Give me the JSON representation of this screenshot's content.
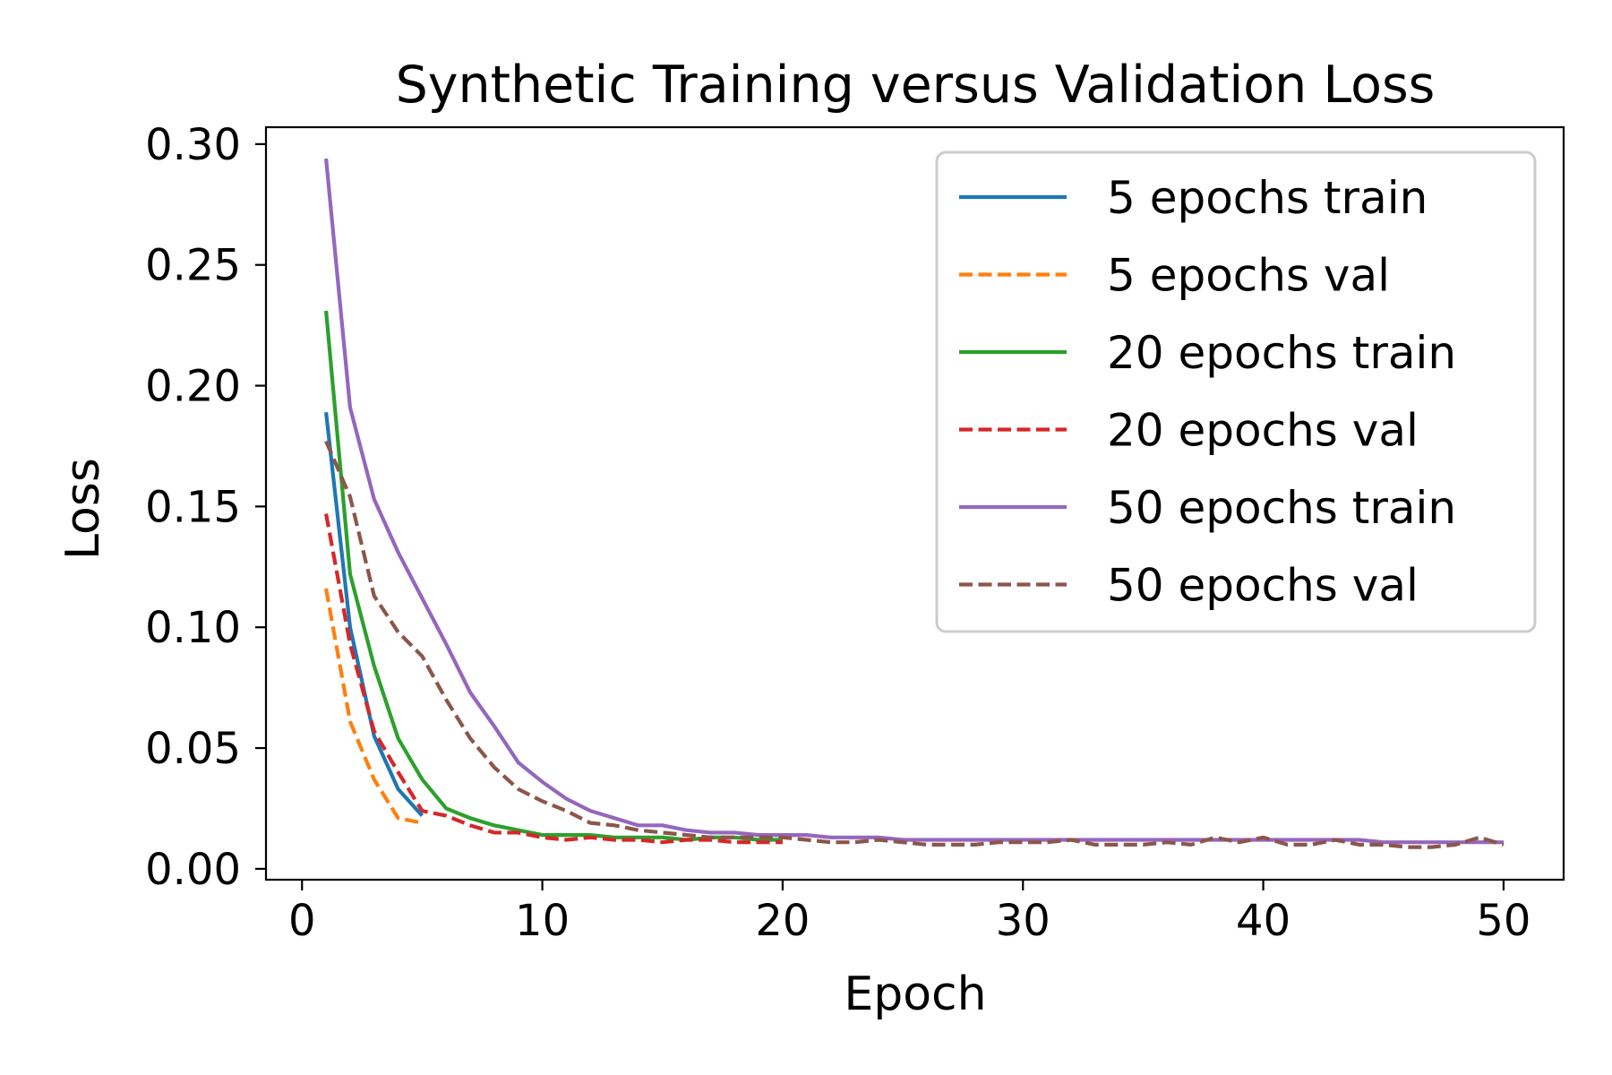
{
  "chart_data": {
    "type": "line",
    "title": "Synthetic Training versus Validation Loss",
    "xlabel": "Epoch",
    "ylabel": "Loss",
    "xlim": [
      -1.5,
      52.5
    ],
    "ylim": [
      -0.0045,
      0.307
    ],
    "x_ticks": [
      0,
      10,
      20,
      30,
      40,
      50
    ],
    "x_tick_labels": [
      "0",
      "10",
      "20",
      "30",
      "40",
      "50"
    ],
    "y_ticks": [
      0.0,
      0.05,
      0.1,
      0.15,
      0.2,
      0.25,
      0.3
    ],
    "y_tick_labels": [
      "0.00",
      "0.05",
      "0.10",
      "0.15",
      "0.20",
      "0.25",
      "0.30"
    ],
    "grid": false,
    "legend_position": "top-right",
    "series": [
      {
        "name": "5 epochs train",
        "color": "#1f77b4",
        "style": "solid",
        "x": [
          1,
          2,
          3,
          4,
          5
        ],
        "y": [
          0.189,
          0.1,
          0.055,
          0.033,
          0.022
        ]
      },
      {
        "name": "5 epochs val",
        "color": "#ff7f0e",
        "style": "dashed",
        "x": [
          1,
          2,
          3,
          4,
          5
        ],
        "y": [
          0.116,
          0.061,
          0.037,
          0.021,
          0.019
        ]
      },
      {
        "name": "20 epochs train",
        "color": "#2ca02c",
        "style": "solid",
        "x": [
          1,
          2,
          3,
          4,
          5,
          6,
          7,
          8,
          9,
          10,
          11,
          12,
          13,
          14,
          15,
          16,
          17,
          18,
          19,
          20
        ],
        "y": [
          0.231,
          0.122,
          0.084,
          0.054,
          0.037,
          0.025,
          0.021,
          0.018,
          0.016,
          0.014,
          0.014,
          0.014,
          0.013,
          0.013,
          0.013,
          0.012,
          0.013,
          0.013,
          0.012,
          0.012
        ]
      },
      {
        "name": "20 epochs val",
        "color": "#d62728",
        "style": "dashed",
        "x": [
          1,
          2,
          3,
          4,
          5,
          6,
          7,
          8,
          9,
          10,
          11,
          12,
          13,
          14,
          15,
          16,
          17,
          18,
          19,
          20
        ],
        "y": [
          0.147,
          0.093,
          0.057,
          0.04,
          0.024,
          0.022,
          0.018,
          0.015,
          0.015,
          0.013,
          0.012,
          0.013,
          0.012,
          0.012,
          0.011,
          0.012,
          0.012,
          0.011,
          0.011,
          0.011
        ]
      },
      {
        "name": "50 epochs train",
        "color": "#9467bd",
        "style": "solid",
        "x": [
          1,
          2,
          3,
          4,
          5,
          6,
          7,
          8,
          9,
          10,
          11,
          12,
          13,
          14,
          15,
          16,
          17,
          18,
          19,
          20,
          21,
          22,
          23,
          24,
          25,
          26,
          27,
          28,
          29,
          30,
          31,
          32,
          33,
          34,
          35,
          36,
          37,
          38,
          39,
          40,
          41,
          42,
          43,
          44,
          45,
          46,
          47,
          48,
          49,
          50
        ],
        "y": [
          0.294,
          0.191,
          0.153,
          0.131,
          0.112,
          0.093,
          0.073,
          0.059,
          0.044,
          0.036,
          0.029,
          0.024,
          0.021,
          0.018,
          0.018,
          0.016,
          0.015,
          0.015,
          0.014,
          0.014,
          0.014,
          0.013,
          0.013,
          0.013,
          0.012,
          0.012,
          0.012,
          0.012,
          0.012,
          0.012,
          0.012,
          0.012,
          0.012,
          0.012,
          0.012,
          0.012,
          0.012,
          0.012,
          0.012,
          0.012,
          0.012,
          0.012,
          0.012,
          0.012,
          0.011,
          0.011,
          0.011,
          0.011,
          0.011,
          0.011
        ]
      },
      {
        "name": "50 epochs val",
        "color": "#8c564b",
        "style": "dashed",
        "x": [
          1,
          2,
          3,
          4,
          5,
          6,
          7,
          8,
          9,
          10,
          11,
          12,
          13,
          14,
          15,
          16,
          17,
          18,
          19,
          20,
          21,
          22,
          23,
          24,
          25,
          26,
          27,
          28,
          29,
          30,
          31,
          32,
          33,
          34,
          35,
          36,
          37,
          38,
          39,
          40,
          41,
          42,
          43,
          44,
          45,
          46,
          47,
          48,
          49,
          50
        ],
        "y": [
          0.177,
          0.154,
          0.113,
          0.098,
          0.088,
          0.07,
          0.054,
          0.042,
          0.033,
          0.028,
          0.024,
          0.019,
          0.018,
          0.016,
          0.015,
          0.014,
          0.013,
          0.013,
          0.013,
          0.013,
          0.012,
          0.011,
          0.011,
          0.012,
          0.011,
          0.01,
          0.01,
          0.01,
          0.011,
          0.011,
          0.011,
          0.012,
          0.01,
          0.01,
          0.01,
          0.011,
          0.01,
          0.013,
          0.011,
          0.013,
          0.01,
          0.01,
          0.012,
          0.01,
          0.01,
          0.009,
          0.009,
          0.01,
          0.013,
          0.01
        ]
      }
    ]
  }
}
